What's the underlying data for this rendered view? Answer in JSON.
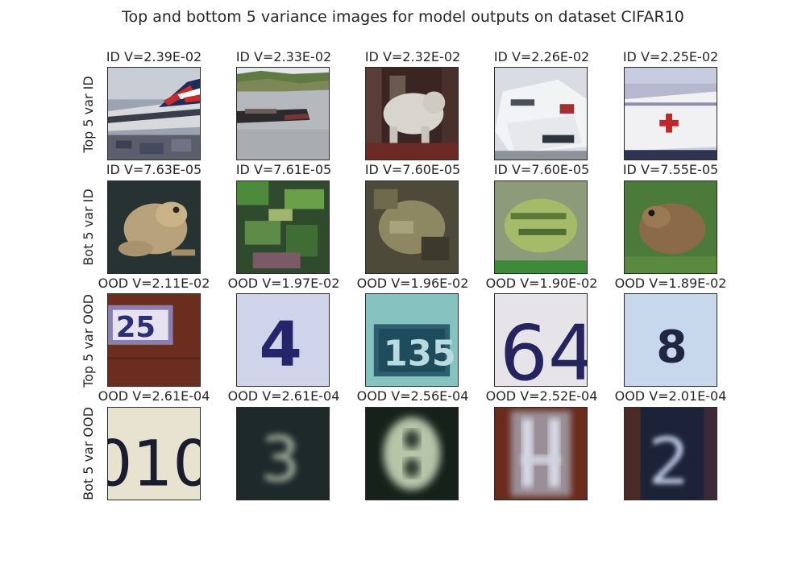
{
  "figure": {
    "title": "Top and bottom 5 variance images for model outputs on dataset CIFAR10"
  },
  "rows": [
    {
      "label": "Top 5 var ID",
      "cells": [
        {
          "title": "ID V=2.39E-02",
          "icon": "airplane-image"
        },
        {
          "title": "ID V=2.33E-02",
          "icon": "ship-image"
        },
        {
          "title": "ID V=2.32E-02",
          "icon": "dog-image"
        },
        {
          "title": "ID V=2.26E-02",
          "icon": "car-image"
        },
        {
          "title": "ID V=2.25E-02",
          "icon": "hospital-ship-image"
        }
      ]
    },
    {
      "label": "Bot 5 var ID",
      "cells": [
        {
          "title": "ID V=7.63E-05",
          "icon": "frog-image"
        },
        {
          "title": "ID V=7.61E-05",
          "icon": "frog-image"
        },
        {
          "title": "ID V=7.60E-05",
          "icon": "frog-image"
        },
        {
          "title": "ID V=7.60E-05",
          "icon": "frog-image"
        },
        {
          "title": "ID V=7.55E-05",
          "icon": "frog-image"
        }
      ]
    },
    {
      "label": "Top 5 var OOD",
      "cells": [
        {
          "title": "OOD V=2.11E-02",
          "icon": "house-number-image"
        },
        {
          "title": "OOD V=1.97E-02",
          "icon": "house-number-image"
        },
        {
          "title": "OOD V=1.96E-02",
          "icon": "house-number-image"
        },
        {
          "title": "OOD V=1.90E-02",
          "icon": "house-number-image"
        },
        {
          "title": "OOD V=1.89E-02",
          "icon": "house-number-image"
        }
      ]
    },
    {
      "label": "Bot 5 var OOD",
      "cells": [
        {
          "title": "OOD V=2.61E-04",
          "icon": "house-number-image"
        },
        {
          "title": "OOD V=2.61E-04",
          "icon": "house-number-image"
        },
        {
          "title": "OOD V=2.56E-04",
          "icon": "house-number-image"
        },
        {
          "title": "OOD V=2.52E-04",
          "icon": "house-number-image"
        },
        {
          "title": "OOD V=2.01E-04",
          "icon": "house-number-image"
        }
      ]
    }
  ],
  "colors": {
    "tile_border": "#2b2b2b",
    "text": "#262626"
  }
}
